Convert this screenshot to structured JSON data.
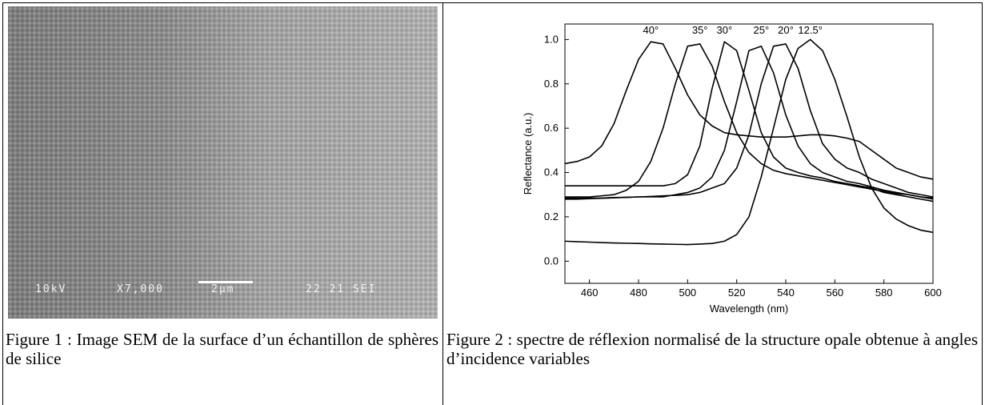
{
  "figure1": {
    "image_labels": [
      "10kV",
      "X7,000",
      "2μm",
      "22 21 SEI"
    ],
    "caption": "Figure 1 : Image SEM  de la surface d’un échantillon de sphères de silice"
  },
  "figure2": {
    "caption": "Figure 2 : spectre de réflexion normalisé de la structure opale obtenue à angles d’incidence variables"
  },
  "chart_data": {
    "type": "line",
    "x_label": "Wavelength (nm)",
    "y_label": "Reflectance (a.u.)",
    "x": [
      450,
      455,
      460,
      465,
      470,
      475,
      480,
      485,
      490,
      495,
      500,
      505,
      510,
      515,
      520,
      525,
      530,
      535,
      540,
      545,
      550,
      555,
      560,
      565,
      570,
      575,
      580,
      585,
      590,
      595,
      600
    ],
    "xlim": [
      450,
      600
    ],
    "xticks": [
      460,
      480,
      500,
      520,
      540,
      560,
      580,
      600
    ],
    "ylim": [
      -0.1,
      1.07
    ],
    "yticks": [
      {
        "value": 0,
        "label": "0.0"
      },
      0.2,
      0.4,
      0.6,
      0.8,
      {
        "value": 1,
        "label": "1.0"
      }
    ],
    "series": [
      {
        "name": "40°",
        "color": "#000000",
        "values": [
          0.44,
          0.45,
          0.47,
          0.52,
          0.62,
          0.77,
          0.91,
          0.99,
          0.98,
          0.87,
          0.75,
          0.66,
          0.61,
          0.58,
          0.57,
          0.565,
          0.56,
          0.56,
          0.56,
          0.565,
          0.57,
          0.57,
          0.565,
          0.555,
          0.54,
          0.5,
          0.46,
          0.42,
          0.4,
          0.38,
          0.37
        ]
      },
      {
        "name": "35°",
        "color": "#000000",
        "values": [
          0.29,
          0.29,
          0.29,
          0.295,
          0.3,
          0.32,
          0.36,
          0.45,
          0.6,
          0.8,
          0.97,
          0.98,
          0.88,
          0.72,
          0.58,
          0.49,
          0.44,
          0.41,
          0.395,
          0.385,
          0.375,
          0.365,
          0.355,
          0.345,
          0.335,
          0.325,
          0.315,
          0.305,
          0.3,
          0.29,
          0.285
        ]
      },
      {
        "name": "30°",
        "color": "#000000",
        "values": [
          0.34,
          0.34,
          0.34,
          0.34,
          0.34,
          0.34,
          0.34,
          0.34,
          0.34,
          0.35,
          0.39,
          0.52,
          0.78,
          0.99,
          0.95,
          0.77,
          0.58,
          0.47,
          0.42,
          0.4,
          0.385,
          0.375,
          0.36,
          0.35,
          0.34,
          0.33,
          0.31,
          0.3,
          0.29,
          0.28,
          0.27
        ]
      },
      {
        "name": "25°",
        "color": "#000000",
        "values": [
          0.285,
          0.285,
          0.285,
          0.285,
          0.287,
          0.288,
          0.29,
          0.29,
          0.29,
          0.3,
          0.31,
          0.33,
          0.38,
          0.5,
          0.72,
          0.95,
          0.97,
          0.85,
          0.66,
          0.52,
          0.44,
          0.4,
          0.38,
          0.36,
          0.35,
          0.335,
          0.32,
          0.31,
          0.3,
          0.29,
          0.28
        ]
      },
      {
        "name": "20°",
        "color": "#000000",
        "values": [
          0.28,
          0.28,
          0.282,
          0.284,
          0.286,
          0.288,
          0.29,
          0.292,
          0.295,
          0.297,
          0.3,
          0.31,
          0.33,
          0.35,
          0.42,
          0.57,
          0.8,
          0.97,
          0.98,
          0.87,
          0.68,
          0.53,
          0.46,
          0.42,
          0.4,
          0.37,
          0.35,
          0.33,
          0.31,
          0.3,
          0.29
        ]
      },
      {
        "name": "12.5°",
        "color": "#000000",
        "values": [
          0.09,
          0.088,
          0.086,
          0.084,
          0.082,
          0.081,
          0.08,
          0.078,
          0.077,
          0.076,
          0.075,
          0.077,
          0.08,
          0.09,
          0.12,
          0.2,
          0.38,
          0.6,
          0.82,
          0.96,
          1.0,
          0.95,
          0.82,
          0.65,
          0.47,
          0.33,
          0.24,
          0.19,
          0.16,
          0.14,
          0.13
        ]
      }
    ]
  }
}
